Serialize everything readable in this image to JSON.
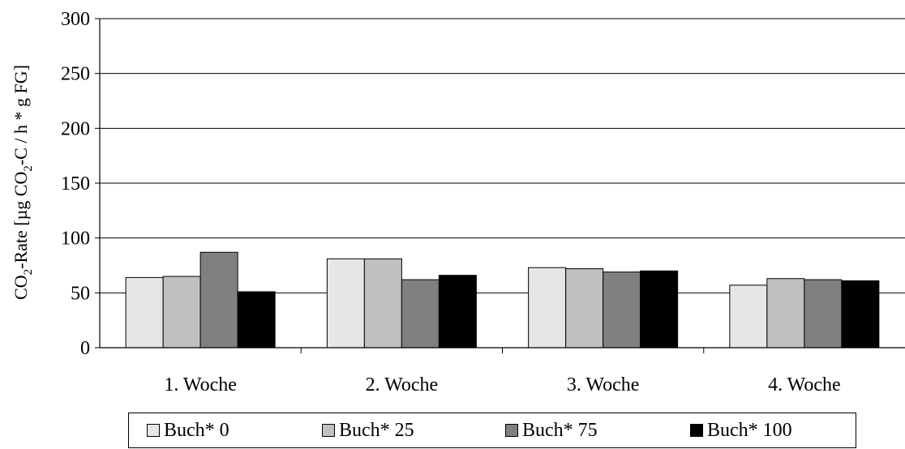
{
  "chart_data": {
    "type": "bar",
    "title": "",
    "xlabel": "",
    "ylabel_parts": [
      "CO",
      "2",
      "-Rate [µg CO",
      "2",
      "-C / h * g FG]"
    ],
    "ylim": [
      0,
      300
    ],
    "yticks": [
      0,
      50,
      100,
      150,
      200,
      250,
      300
    ],
    "grid": true,
    "legend_position": "bottom",
    "categories": [
      "1. Woche",
      "2. Woche",
      "3. Woche",
      "4. Woche"
    ],
    "series": [
      {
        "name": "Buch* 0",
        "color": "#e6e6e6",
        "values": [
          64,
          81,
          73,
          57
        ]
      },
      {
        "name": "Buch* 25",
        "color": "#c0c0c0",
        "values": [
          65,
          81,
          72,
          63
        ]
      },
      {
        "name": "Buch* 75",
        "color": "#808080",
        "values": [
          87,
          62,
          69,
          62
        ]
      },
      {
        "name": "Buch* 100",
        "color": "#000000",
        "values": [
          51,
          66,
          70,
          61
        ]
      }
    ]
  }
}
